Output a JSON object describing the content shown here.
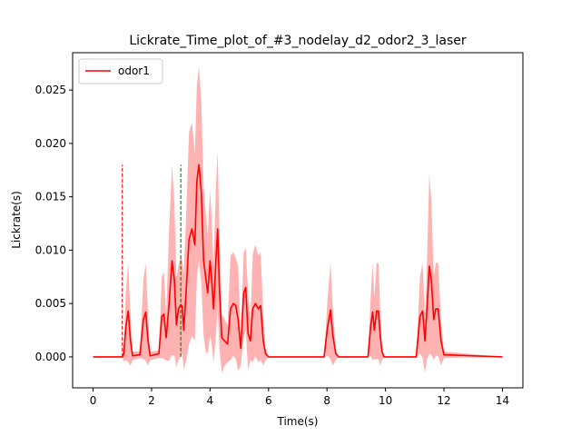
{
  "chart_data": {
    "type": "line",
    "title": "Lickrate_Time_plot_of_#3_nodelay_d2_odor2_3_laser",
    "xlabel": "Time(s)",
    "ylabel": "Lickrate(s)",
    "xlim": [
      -0.7,
      14.7
    ],
    "ylim": [
      -0.0029,
      0.0285
    ],
    "xticks": [
      0,
      2,
      4,
      6,
      8,
      10,
      12,
      14
    ],
    "xtick_labels": [
      "0",
      "2",
      "4",
      "6",
      "8",
      "10",
      "12",
      "14"
    ],
    "yticks": [
      0.0,
      0.005,
      0.01,
      0.015,
      0.02,
      0.025
    ],
    "ytick_labels": [
      "0.000",
      "0.005",
      "0.010",
      "0.015",
      "0.020",
      "0.025"
    ],
    "grid": false,
    "legend_position": "top-left",
    "series": [
      {
        "name": "odor1",
        "color": "#ff0000",
        "fill_color": "#ff0000",
        "x": [
          0,
          1.0,
          1.05,
          1.12,
          1.2,
          1.28,
          1.35,
          1.6,
          1.72,
          1.8,
          1.88,
          1.95,
          2.25,
          2.35,
          2.42,
          2.5,
          2.6,
          2.7,
          2.78,
          2.85,
          2.92,
          3.0,
          3.05,
          3.1,
          3.18,
          3.28,
          3.38,
          3.48,
          3.55,
          3.62,
          3.7,
          3.78,
          3.85,
          3.92,
          4.0,
          4.05,
          4.12,
          4.2,
          4.26,
          4.32,
          4.4,
          4.5,
          4.6,
          4.7,
          4.8,
          4.88,
          4.96,
          5.05,
          5.15,
          5.22,
          5.3,
          5.38,
          5.46,
          5.55,
          5.65,
          5.73,
          5.82,
          5.9,
          6.0,
          7.9,
          8.02,
          8.12,
          8.2,
          8.3,
          8.4,
          9.4,
          9.5,
          9.56,
          9.62,
          9.7,
          9.76,
          9.82,
          9.88,
          9.95,
          11.05,
          11.18,
          11.27,
          11.35,
          11.42,
          11.5,
          11.57,
          11.65,
          11.72,
          11.8,
          11.9,
          12.0,
          14.0
        ],
        "y": [
          0,
          0,
          0.0003,
          0.0028,
          0.0043,
          0.0015,
          0.0001,
          0.0002,
          0.0035,
          0.0042,
          0.0015,
          0.0001,
          0.0003,
          0.0038,
          0.004,
          0.0018,
          0.005,
          0.009,
          0.0072,
          0.003,
          0.0045,
          0.0049,
          0.0047,
          0.0025,
          0.006,
          0.011,
          0.012,
          0.0105,
          0.0165,
          0.018,
          0.0155,
          0.009,
          0.0075,
          0.006,
          0.009,
          0.0075,
          0.0045,
          0.009,
          0.012,
          0.0065,
          0.0018,
          0.0015,
          0.0012,
          0.0045,
          0.005,
          0.0048,
          0.0035,
          0.0008,
          0.006,
          0.0065,
          0.0022,
          0.0015,
          0.0045,
          0.005,
          0.0045,
          0.0048,
          0.0015,
          0.0003,
          0,
          0,
          0.0028,
          0.0044,
          0.002,
          0.0003,
          0,
          0,
          0.003,
          0.0042,
          0.0025,
          0.0043,
          0.0043,
          0.002,
          0.0005,
          0,
          0,
          0.0038,
          0.0043,
          0.0015,
          0.0045,
          0.0085,
          0.0072,
          0.0035,
          0.0045,
          0.0045,
          0.0015,
          0.0002,
          0
        ],
        "upper": [
          0,
          0,
          0.001,
          0.006,
          0.0089,
          0.004,
          0.0005,
          0.0005,
          0.0072,
          0.0088,
          0.004,
          0.0005,
          0.0006,
          0.0075,
          0.008,
          0.004,
          0.012,
          0.018,
          0.0145,
          0.0075,
          0.0085,
          0.0095,
          0.009,
          0.0078,
          0.013,
          0.021,
          0.022,
          0.019,
          0.0255,
          0.0272,
          0.024,
          0.016,
          0.0135,
          0.0115,
          0.0155,
          0.0135,
          0.0085,
          0.016,
          0.0193,
          0.012,
          0.004,
          0.0035,
          0.003,
          0.0095,
          0.0098,
          0.0093,
          0.0085,
          0.002,
          0.0098,
          0.0102,
          0.006,
          0.0035,
          0.0096,
          0.0105,
          0.0095,
          0.0098,
          0.004,
          0.0008,
          0,
          0,
          0.0055,
          0.0088,
          0.0045,
          0.0008,
          0,
          0,
          0.006,
          0.0088,
          0.0055,
          0.0088,
          0.0088,
          0.0045,
          0.0012,
          0,
          0,
          0.0075,
          0.0088,
          0.0035,
          0.009,
          0.0172,
          0.0145,
          0.0075,
          0.0088,
          0.0088,
          0.0035,
          0.0005,
          0
        ],
        "lower": [
          0,
          0,
          -0.0004,
          -0.0003,
          -0.0005,
          -0.0008,
          -0.0003,
          -0.0001,
          -0.0002,
          -0.0004,
          -0.0008,
          -0.0003,
          -0.0001,
          -0.0001,
          -0.0002,
          -0.0003,
          -0.0004,
          0.0002,
          0.0001,
          -0.0009,
          -0.0003,
          0.0001,
          0.0003,
          -0.0012,
          -0.0004,
          0.0012,
          0.002,
          0.0015,
          0.0075,
          0.009,
          0.007,
          0.002,
          0.0005,
          0.0003,
          0.002,
          0.0013,
          -0.0005,
          0.002,
          0.0045,
          0.0008,
          -0.0015,
          -0.0008,
          -0.0005,
          -0.0003,
          0.0001,
          -0.0002,
          -0.0013,
          -0.0008,
          0.0018,
          0.0025,
          -0.0012,
          -0.0003,
          -0.0005,
          0.0001,
          -0.0005,
          -0.0003,
          -0.0008,
          -0.0003,
          0,
          0,
          0.0001,
          -0.0002,
          -0.0008,
          -0.0003,
          0,
          0,
          0.0001,
          -0.0003,
          -0.0002,
          -0.0002,
          -0.0002,
          -0.0008,
          -0.0003,
          0,
          0,
          0.0003,
          -0.0001,
          -0.0015,
          -0.0002,
          0.0003,
          0.0002,
          -0.0003,
          0.0001,
          0.0001,
          -0.0008,
          -0.0001,
          0
        ]
      }
    ],
    "vlines": [
      {
        "x": 1.0,
        "ymin": 0,
        "ymax": 0.018,
        "color": "#ff0000",
        "style": "dashed"
      },
      {
        "x": 3.0,
        "ymin": 0,
        "ymax": 0.018,
        "color": "#008000",
        "style": "dashed"
      }
    ]
  }
}
